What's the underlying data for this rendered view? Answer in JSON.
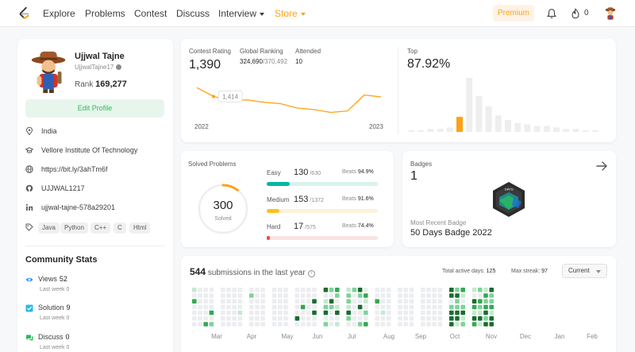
{
  "nav": {
    "links": [
      {
        "label": "Explore"
      },
      {
        "label": "Problems"
      },
      {
        "label": "Contest"
      },
      {
        "label": "Discuss"
      },
      {
        "label": "Interview"
      },
      {
        "label": "Store"
      }
    ],
    "premium": "Premium",
    "streak_count": "0",
    "accent": "#ffa116"
  },
  "profile": {
    "name": "Ujjwal Tajne",
    "username": "UjjwalTajne17",
    "rank_label": "Rank",
    "rank_value": "169,277",
    "edit_label": "Edit Profile",
    "location": "India",
    "school": "Vellore Institute Of Technology",
    "website": "https://bit.ly/3ahTm6f",
    "github": "UJJWAL1217",
    "linkedin": "ujjwal-tajne-578a29201",
    "skills": [
      "Java",
      "Python",
      "C++",
      "C",
      "Html"
    ]
  },
  "community": {
    "title": "Community Stats",
    "items": [
      {
        "label": "Views",
        "value": "52",
        "sub": "Last week 0",
        "icon": "eye-icon",
        "color": "#1a90ff"
      },
      {
        "label": "Solution",
        "value": "9",
        "sub": "Last week 0",
        "icon": "solution-icon",
        "color": "#2db8e5"
      },
      {
        "label": "Discuss",
        "value": "0",
        "sub": "Last week 0",
        "icon": "discuss-icon",
        "color": "#2cbb5d"
      }
    ]
  },
  "contest": {
    "rating_label": "Contest Rating",
    "rating": "1,390",
    "global_label": "Global Ranking",
    "global_rank": "324,690",
    "global_total": "/370,492",
    "attended_label": "Attended",
    "attended": "10",
    "tooltip": "1,414",
    "year_start": "2022",
    "year_end": "2023",
    "top_label": "Top",
    "top_value": "87.92%",
    "rating_series": [
      1500,
      1470,
      1455,
      1458,
      1450,
      1445,
      1430,
      1425,
      1415,
      1420,
      1475,
      1468
    ],
    "histogram": [
      1,
      1,
      2,
      2,
      3,
      10,
      36,
      24,
      17,
      11,
      8,
      6,
      5,
      4,
      4,
      3,
      2,
      2,
      1,
      1
    ],
    "highlight_index": 5
  },
  "solved": {
    "title": "Solved Problems",
    "total": "300",
    "total_label": "Solved",
    "difficulties": [
      {
        "name": "Easy",
        "count": 130,
        "total": 630,
        "count_text": "130",
        "total_text": "/630",
        "beats_label": "Beats",
        "beats": "94.9%",
        "color": "#00b8a3",
        "track": "#d9f2ee"
      },
      {
        "name": "Medium",
        "count": 153,
        "total": 1372,
        "count_text": "153",
        "total_text": "/1372",
        "beats_label": "Beats",
        "beats": "91.6%",
        "color": "#ffc01e",
        "track": "#fdf1d7"
      },
      {
        "name": "Hard",
        "count": 17,
        "total": 575,
        "count_text": "17",
        "total_text": "/575",
        "beats_label": "Beats",
        "beats": "74.4%",
        "color": "#ef4743",
        "track": "#fbe3e2"
      }
    ]
  },
  "badges": {
    "title": "Badges",
    "count": "1",
    "recent_label": "Most Recent Badge",
    "recent_name": "50 Days Badge 2022",
    "badge_text": "DAYS"
  },
  "submissions": {
    "count": "544",
    "label": "submissions in the last year",
    "active_label": "Total active days:",
    "active_days": "125",
    "streak_label": "Max streak:",
    "max_streak": "97",
    "period": "Current",
    "months": [
      "Mar",
      "Apr",
      "May",
      "Jun",
      "Jul",
      "Aug",
      "Sep",
      "Oct",
      "Nov",
      "Dec",
      "Jan",
      "Feb"
    ],
    "levels": [
      "#ebedf0",
      "#c6e9cf",
      "#7dd39a",
      "#34a853",
      "#196c2e"
    ]
  }
}
